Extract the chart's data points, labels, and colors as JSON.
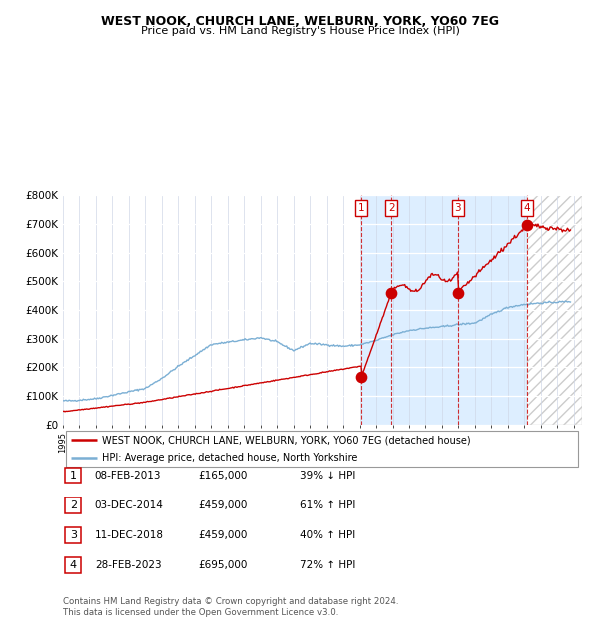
{
  "title1": "WEST NOOK, CHURCH LANE, WELBURN, YORK, YO60 7EG",
  "title2": "Price paid vs. HM Land Registry's House Price Index (HPI)",
  "legend_label1": "WEST NOOK, CHURCH LANE, WELBURN, YORK, YO60 7EG (detached house)",
  "legend_label2": "HPI: Average price, detached house, North Yorkshire",
  "transactions": [
    {
      "num": 1,
      "date": "08-FEB-2013",
      "price": 165000,
      "pct": "39%",
      "dir": "↓",
      "year": 2013.1
    },
    {
      "num": 2,
      "date": "03-DEC-2014",
      "price": 459000,
      "pct": "61%",
      "dir": "↑",
      "year": 2014.92
    },
    {
      "num": 3,
      "date": "11-DEC-2018",
      "price": 459000,
      "pct": "40%",
      "dir": "↑",
      "year": 2018.95
    },
    {
      "num": 4,
      "date": "28-FEB-2023",
      "price": 695000,
      "pct": "72%",
      "dir": "↑",
      "year": 2023.16
    }
  ],
  "hpi_color": "#7bafd4",
  "price_color": "#cc0000",
  "bg_color": "#ddeeff",
  "ylabel_vals": [
    0,
    100000,
    200000,
    300000,
    400000,
    500000,
    600000,
    700000,
    800000
  ],
  "ylabel_labels": [
    "£0",
    "£100K",
    "£200K",
    "£300K",
    "£400K",
    "£500K",
    "£600K",
    "£700K",
    "£800K"
  ],
  "xmin": 1995,
  "xmax": 2026.5,
  "ymin": 0,
  "ymax": 800000,
  "footer": "Contains HM Land Registry data © Crown copyright and database right 2024.\nThis data is licensed under the Open Government Licence v3.0."
}
